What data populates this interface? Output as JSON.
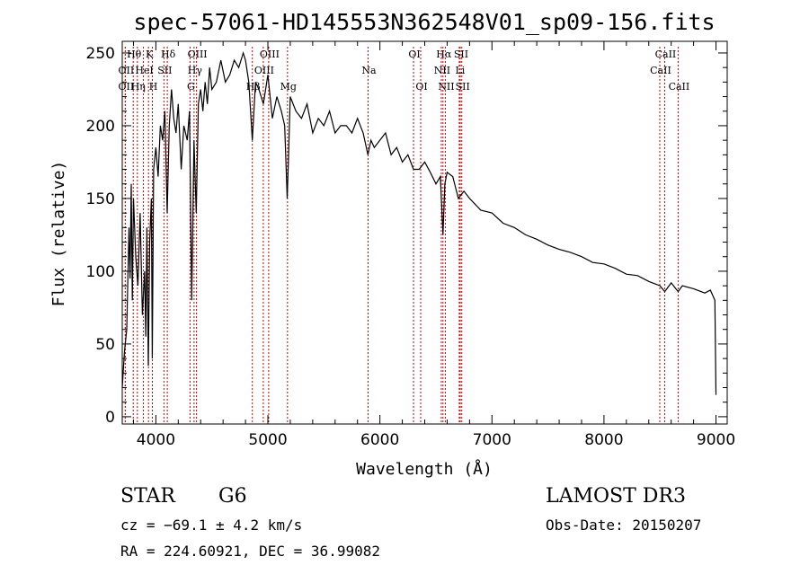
{
  "chart_data": {
    "type": "line",
    "title": "spec-57061-HD145553N362548V01_sp09-156.fits",
    "xlabel": "Wavelength (Å)",
    "ylabel": "Flux (relative)",
    "xlim": [
      3700,
      9100
    ],
    "ylim": [
      -5,
      258
    ],
    "xticks": [
      4000,
      5000,
      6000,
      7000,
      8000,
      9000
    ],
    "yticks": [
      0,
      50,
      100,
      150,
      200,
      250
    ],
    "series": [
      {
        "name": "flux",
        "x": [
          3700,
          3720,
          3740,
          3760,
          3770,
          3780,
          3790,
          3800,
          3820,
          3840,
          3860,
          3880,
          3900,
          3910,
          3920,
          3933,
          3945,
          3960,
          3968,
          3980,
          4000,
          4020,
          4040,
          4060,
          4080,
          4101,
          4120,
          4140,
          4160,
          4180,
          4200,
          4226,
          4250,
          4280,
          4300,
          4320,
          4340,
          4360,
          4380,
          4400,
          4420,
          4440,
          4460,
          4480,
          4500,
          4540,
          4580,
          4620,
          4660,
          4700,
          4740,
          4780,
          4800,
          4830,
          4861,
          4890,
          4920,
          4960,
          5000,
          5040,
          5080,
          5120,
          5150,
          5172,
          5183,
          5200,
          5250,
          5300,
          5350,
          5400,
          5450,
          5500,
          5550,
          5600,
          5650,
          5700,
          5750,
          5800,
          5850,
          5893,
          5920,
          5950,
          6000,
          6050,
          6100,
          6150,
          6200,
          6250,
          6300,
          6350,
          6400,
          6450,
          6500,
          6540,
          6563,
          6580,
          6600,
          6650,
          6700,
          6750,
          6800,
          6900,
          7000,
          7100,
          7200,
          7300,
          7400,
          7500,
          7600,
          7700,
          7800,
          7900,
          8000,
          8100,
          8200,
          8300,
          8400,
          8500,
          8542,
          8600,
          8662,
          8700,
          8800,
          8900,
          8950,
          8990,
          9000
        ],
        "values": [
          20,
          45,
          60,
          130,
          95,
          160,
          80,
          150,
          110,
          90,
          140,
          70,
          100,
          55,
          130,
          35,
          120,
          150,
          40,
          170,
          185,
          165,
          200,
          190,
          210,
          140,
          200,
          225,
          205,
          195,
          215,
          170,
          200,
          190,
          210,
          80,
          190,
          140,
          215,
          225,
          210,
          230,
          215,
          240,
          225,
          230,
          245,
          230,
          235,
          245,
          240,
          250,
          245,
          230,
          190,
          230,
          225,
          215,
          235,
          205,
          220,
          210,
          200,
          150,
          175,
          220,
          210,
          205,
          215,
          195,
          205,
          200,
          210,
          195,
          200,
          200,
          195,
          205,
          195,
          180,
          190,
          185,
          190,
          195,
          180,
          185,
          175,
          180,
          170,
          170,
          175,
          168,
          160,
          165,
          125,
          160,
          168,
          165,
          150,
          155,
          150,
          142,
          140,
          133,
          130,
          125,
          122,
          118,
          115,
          113,
          110,
          106,
          105,
          102,
          98,
          97,
          93,
          90,
          86,
          92,
          86,
          90,
          88,
          85,
          87,
          80,
          15
        ]
      }
    ],
    "spectral_lines": [
      {
        "label": "OII",
        "wavelength": 3727,
        "row": 2
      },
      {
        "label": "Hθ",
        "wavelength": 3798,
        "row": 0
      },
      {
        "label": "OII",
        "wavelength": 3727,
        "row": 1
      },
      {
        "label": "Hη",
        "wavelength": 3835,
        "row": 2
      },
      {
        "label": "HeI",
        "wavelength": 3889,
        "row": 1
      },
      {
        "label": "K",
        "wavelength": 3934,
        "row": 0
      },
      {
        "label": "H",
        "wavelength": 3969,
        "row": 2
      },
      {
        "label": "SII",
        "wavelength": 4072,
        "row": 1
      },
      {
        "label": "Hδ",
        "wavelength": 4102,
        "row": 0
      },
      {
        "label": "Hγ",
        "wavelength": 4341,
        "row": 1
      },
      {
        "label": "G",
        "wavelength": 4305,
        "row": 2
      },
      {
        "label": "OIII",
        "wavelength": 4363,
        "row": 0
      },
      {
        "label": "Hβ",
        "wavelength": 4861,
        "row": 2
      },
      {
        "label": "OIII",
        "wavelength": 4959,
        "row": 1
      },
      {
        "label": "OIII",
        "wavelength": 5007,
        "row": 0
      },
      {
        "label": "Mg",
        "wavelength": 5175,
        "row": 2
      },
      {
        "label": "Na",
        "wavelength": 5894,
        "row": 1
      },
      {
        "label": "OI",
        "wavelength": 6300,
        "row": 0
      },
      {
        "label": "OI",
        "wavelength": 6364,
        "row": 2
      },
      {
        "label": "NII",
        "wavelength": 6548,
        "row": 1
      },
      {
        "label": "NII",
        "wavelength": 6584,
        "row": 2
      },
      {
        "label": "Hα",
        "wavelength": 6563,
        "row": 0
      },
      {
        "label": "SII",
        "wavelength": 6717,
        "row": 0
      },
      {
        "label": "Li",
        "wavelength": 6708,
        "row": 1
      },
      {
        "label": "SII",
        "wavelength": 6731,
        "row": 2
      },
      {
        "label": "CaII",
        "wavelength": 8498,
        "row": 1
      },
      {
        "label": "CaII",
        "wavelength": 8542,
        "row": 0
      },
      {
        "label": "CaII",
        "wavelength": 8662,
        "row": 2
      }
    ]
  },
  "info": {
    "class_label": "STAR",
    "subclass": "G6",
    "redshift": "cz = −69.1 ± 4.2 km/s",
    "coords": "RA = 224.60921, DEC =  36.99082",
    "survey": "LAMOST DR3",
    "obs_date": "Obs-Date: 20150207"
  }
}
